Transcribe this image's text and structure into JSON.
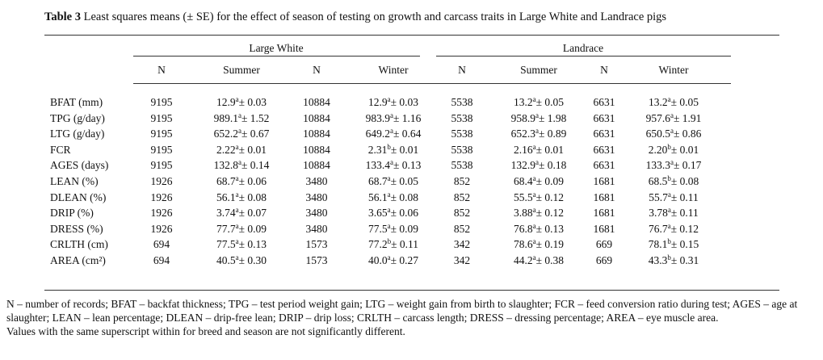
{
  "title": {
    "label": "Table 3",
    "text": "Least squares means (± SE) for the effect of season of testing on growth and carcass traits in Large White and Landrace pigs"
  },
  "table": {
    "groups": [
      "Large White",
      "Landrace"
    ],
    "columns": [
      "N",
      "Summer",
      "N",
      "Winter",
      "N",
      "Summer",
      "N",
      "Winter"
    ],
    "rows": [
      {
        "label": "BFAT (mm)",
        "cells": [
          "9195",
          [
            "12.9",
            "a",
            "± 0.03"
          ],
          "10884",
          [
            "12.9",
            "a",
            "± 0.03"
          ],
          "5538",
          [
            "13.2",
            "a",
            "± 0.05"
          ],
          "6631",
          [
            "13.2",
            "a",
            "± 0.05"
          ]
        ]
      },
      {
        "label": "TPG (g/day)",
        "cells": [
          "9195",
          [
            "989.1",
            "a",
            "± 1.52"
          ],
          "10884",
          [
            "983.9",
            "a",
            "± 1.16"
          ],
          "5538",
          [
            "958.9",
            "a",
            "± 1.98"
          ],
          "6631",
          [
            "957.6",
            "a",
            "± 1.91"
          ]
        ]
      },
      {
        "label": "LTG (g/day)",
        "cells": [
          "9195",
          [
            "652.2",
            "a",
            "± 0.67"
          ],
          "10884",
          [
            "649.2",
            "a",
            "± 0.64"
          ],
          "5538",
          [
            "652.3",
            "a",
            "± 0.89"
          ],
          "6631",
          [
            "650.5",
            "a",
            "± 0.86"
          ]
        ]
      },
      {
        "label": "FCR",
        "cells": [
          "9195",
          [
            "2.22",
            "a",
            "± 0.01"
          ],
          "10884",
          [
            "2.31",
            "b",
            "± 0.01"
          ],
          "5538",
          [
            "2.16",
            "a",
            "± 0.01"
          ],
          "6631",
          [
            "2.20",
            "b",
            "± 0.01"
          ]
        ]
      },
      {
        "label": "AGES (days)",
        "cells": [
          "9195",
          [
            "132.8",
            "a",
            "± 0.14"
          ],
          "10884",
          [
            "133.4",
            "a",
            "± 0.13"
          ],
          "5538",
          [
            "132.9",
            "a",
            "± 0.18"
          ],
          "6631",
          [
            "133.3",
            "a",
            "± 0.17"
          ]
        ]
      },
      {
        "label": "LEAN (%)",
        "cells": [
          "1926",
          [
            "68.7",
            "a",
            "± 0.06"
          ],
          "3480",
          [
            "68.7",
            "a",
            "± 0.05"
          ],
          "852",
          [
            "68.4",
            "a",
            "± 0.09"
          ],
          "1681",
          [
            "68.5",
            "b",
            "± 0.08"
          ]
        ]
      },
      {
        "label": "DLEAN (%)",
        "cells": [
          "1926",
          [
            "56.1",
            "a",
            "± 0.08"
          ],
          "3480",
          [
            "56.1",
            "a",
            "± 0.08"
          ],
          "852",
          [
            "55.5",
            "a",
            "± 0.12"
          ],
          "1681",
          [
            "55.7",
            "a",
            "± 0.11"
          ]
        ]
      },
      {
        "label": "DRIP (%)",
        "cells": [
          "1926",
          [
            "3.74",
            "a",
            "± 0.07"
          ],
          "3480",
          [
            "3.65",
            "a",
            "± 0.06"
          ],
          "852",
          [
            "3.88",
            "a",
            "± 0.12"
          ],
          "1681",
          [
            "3.78",
            "a",
            "± 0.11"
          ]
        ]
      },
      {
        "label": "DRESS (%)",
        "cells": [
          "1926",
          [
            "77.7",
            "a",
            "± 0.09"
          ],
          "3480",
          [
            "77.5",
            "a",
            "± 0.09"
          ],
          "852",
          [
            "76.8",
            "a",
            "± 0.13"
          ],
          "1681",
          [
            "76.7",
            "a",
            "± 0.12"
          ]
        ]
      },
      {
        "label": "CRLTH (cm)",
        "cells": [
          "694",
          [
            "77.5",
            "a",
            "± 0.13"
          ],
          "1573",
          [
            "77.2",
            "b",
            "± 0.11"
          ],
          "342",
          [
            "78.6",
            "a",
            "± 0.19"
          ],
          "669",
          [
            "78.1",
            "b",
            "± 0.15"
          ]
        ]
      },
      {
        "label": "AREA (cm²)",
        "cells": [
          "694",
          [
            "40.5",
            "a",
            "± 0.30"
          ],
          "1573",
          [
            "40.0",
            "a",
            "± 0.27"
          ],
          "342",
          [
            "44.2",
            "a",
            "± 0.38"
          ],
          "669",
          [
            "43.3",
            "b",
            "± 0.31"
          ]
        ]
      }
    ]
  },
  "notes": [
    "N – number of records; BFAT – backfat thickness; TPG – test period weight gain; LTG – weight gain from birth to slaughter; FCR – feed conversion ratio during test; AGES – age at slaughter; LEAN – lean percentage; DLEAN – drip-free lean; DRIP – drip loss; CRLTH – carcass length; DRESS – dressing percentage; AREA – eye muscle area.",
    "Values with the same superscript within for breed and season are not significantly different."
  ]
}
